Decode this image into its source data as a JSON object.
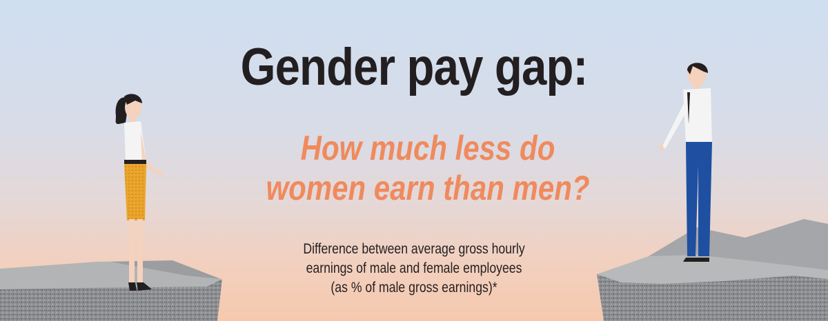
{
  "title": "Gender pay gap:",
  "subtitle": {
    "line1": "How much less do",
    "line2": "women earn than men?"
  },
  "description": {
    "line1": "Difference between average gross hourly",
    "line2": "earnings of male and female employees",
    "line3": "(as % of male gross earnings)*"
  },
  "colors": {
    "title": "#231f20",
    "subtitle": "#f08a5d",
    "rock": "#b0b1b3",
    "skirt": "#eaa52d",
    "trousers": "#1f4fa0"
  }
}
